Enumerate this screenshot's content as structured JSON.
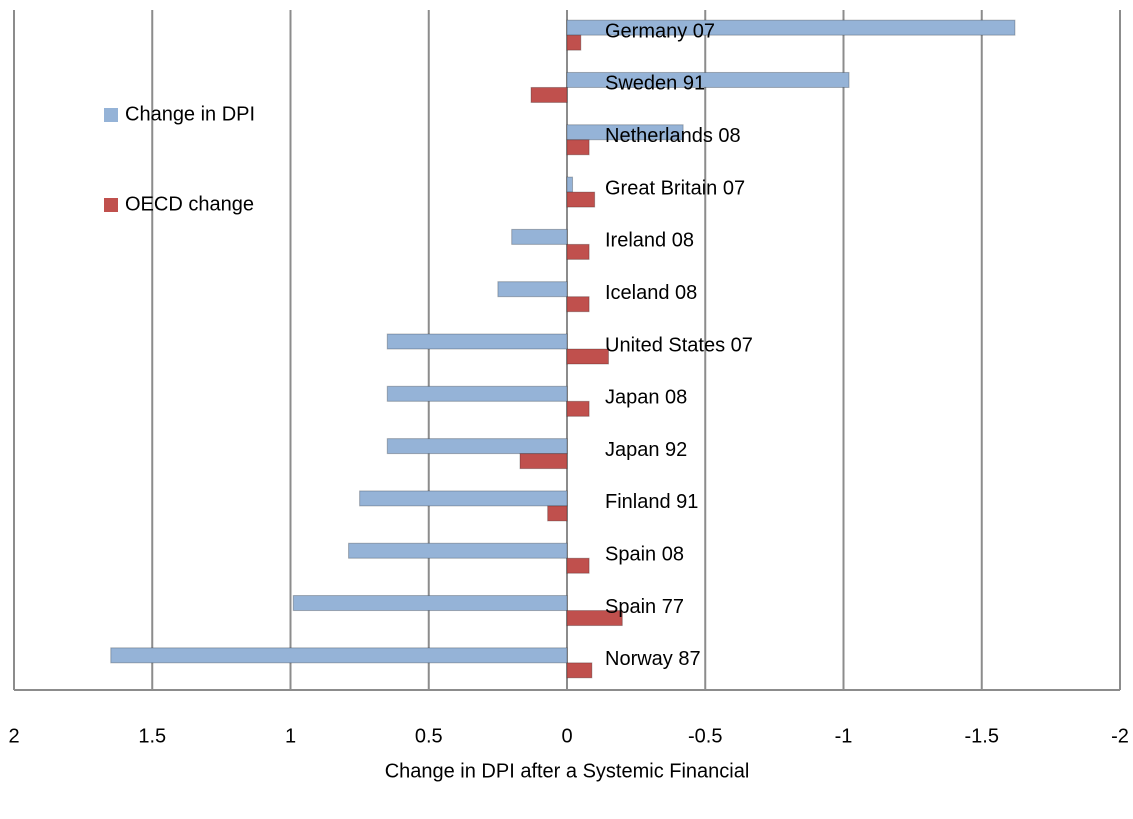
{
  "chart_data": {
    "type": "bar",
    "orientation": "horizontal",
    "x_label": "Change in DPI after a Systemic Financial",
    "categories": [
      "Germany 07",
      "Sweden 91",
      "Netherlands 08",
      "Great Britain 07",
      "Ireland 08",
      "Iceland 08",
      "United States 07",
      "Japan 08",
      "Japan 92",
      "Finland 91",
      "Spain 08",
      "Spain 77",
      "Norway 87"
    ],
    "series": [
      {
        "name": "Change in DPI",
        "color": "#95b3d7",
        "values": [
          -1.62,
          -1.02,
          -0.42,
          -0.02,
          0.2,
          0.25,
          0.65,
          0.65,
          0.65,
          0.75,
          0.79,
          0.99,
          1.65
        ]
      },
      {
        "name": "OECD change",
        "color": "#c0504d",
        "values": [
          -0.05,
          0.13,
          -0.08,
          -0.1,
          -0.08,
          -0.08,
          -0.15,
          -0.08,
          0.17,
          0.07,
          -0.08,
          -0.2,
          -0.09
        ]
      }
    ],
    "xlim": [
      2,
      -2
    ],
    "xticks": [
      2,
      1.5,
      1,
      0.5,
      0,
      -0.5,
      -1,
      -1.5,
      -2
    ],
    "grid": true
  }
}
